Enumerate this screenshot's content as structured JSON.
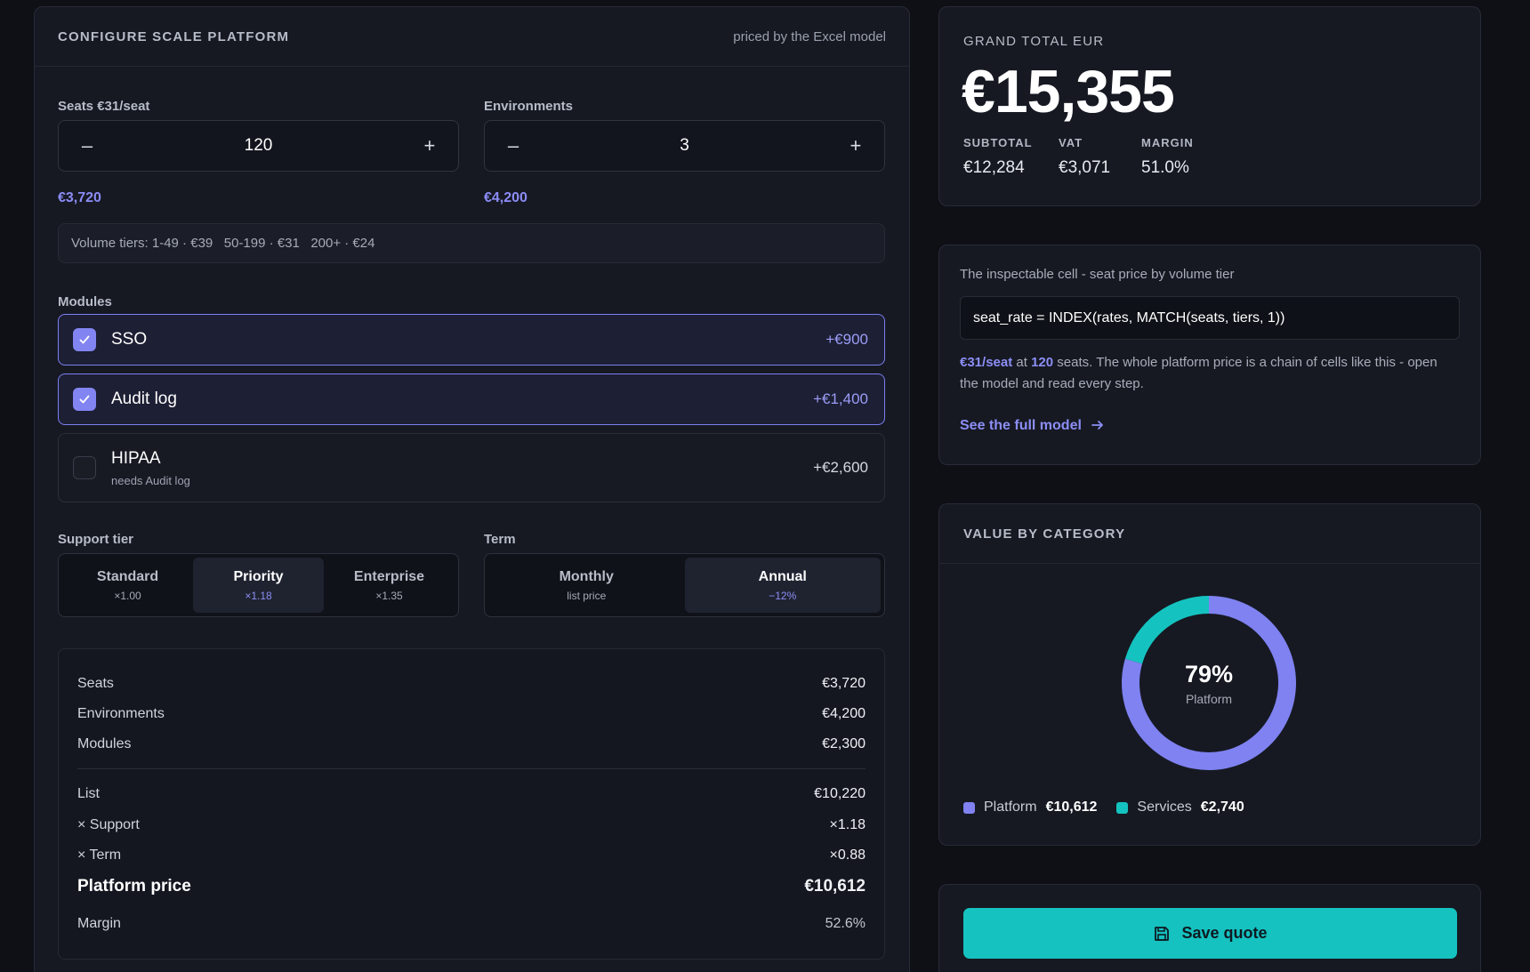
{
  "configure": {
    "title": "CONFIGURE SCALE PLATFORM",
    "note": "priced by the Excel model",
    "seats": {
      "label": "Seats €31/seat",
      "value": "120",
      "minus": "–",
      "plus": "+",
      "total": "€3,720"
    },
    "environments": {
      "label": "Environments",
      "value": "3",
      "minus": "–",
      "plus": "+",
      "total": "€4,200"
    },
    "tiers_text": "Volume tiers: 1-49 · €39   50-199 · €31   200+ · €24",
    "modules_label": "Modules",
    "modules": [
      {
        "name": "SSO",
        "sub": "",
        "price": "+€900",
        "checked": true
      },
      {
        "name": "Audit log",
        "sub": "",
        "price": "+€1,400",
        "checked": true
      },
      {
        "name": "HIPAA",
        "sub": "needs Audit log",
        "price": "+€2,600",
        "checked": false
      }
    ],
    "support": {
      "label": "Support tier",
      "options": [
        {
          "name": "Standard",
          "sub": "×1.00",
          "selected": false
        },
        {
          "name": "Priority",
          "sub": "×1.18",
          "selected": true
        },
        {
          "name": "Enterprise",
          "sub": "×1.35",
          "selected": false
        }
      ]
    },
    "term": {
      "label": "Term",
      "options": [
        {
          "name": "Monthly",
          "sub": "list price",
          "selected": false
        },
        {
          "name": "Annual",
          "sub": "−12%",
          "selected": true
        }
      ]
    },
    "breakdown": {
      "seats": {
        "k": "Seats",
        "v": "€3,720"
      },
      "environments": {
        "k": "Environments",
        "v": "€4,200"
      },
      "modules": {
        "k": "Modules",
        "v": "€2,300"
      },
      "list": {
        "k": "List",
        "v": "€10,220"
      },
      "support": {
        "k": "× Support",
        "v": "×1.18"
      },
      "term": {
        "k": "× Term",
        "v": "×0.88"
      },
      "platform": {
        "k": "Platform price",
        "v": "€10,612"
      },
      "margin": {
        "k": "Margin",
        "v": "52.6%"
      }
    }
  },
  "grand_total": {
    "label": "GRAND TOTAL EUR",
    "value": "€15,355",
    "subtotal": {
      "k": "SUBTOTAL",
      "v": "€12,284"
    },
    "vat": {
      "k": "VAT",
      "v": "€3,071"
    },
    "margin": {
      "k": "MARGIN",
      "v": "51.0%"
    }
  },
  "inspect": {
    "title": "The inspectable cell - seat price by volume tier",
    "formula": "seat_rate = INDEX(rates, MATCH(seats, tiers, 1))",
    "desc_rate": "€31/seat",
    "desc_at": " at ",
    "desc_seats": "120",
    "desc_rest": " seats. The whole platform price is a chain of cells like this - open the model and read every step.",
    "link": "See the full model"
  },
  "value_by_category": {
    "title": "VALUE BY CATEGORY",
    "center_pct": "79%",
    "center_label": "Platform",
    "colors": {
      "platform": "#7f82f0",
      "services": "#14c3bf"
    }
  },
  "chart_data": {
    "type": "pie",
    "title": "VALUE BY CATEGORY",
    "categories": [
      "Platform",
      "Services"
    ],
    "values": [
      10612,
      2740
    ],
    "display_values": [
      "€10,612",
      "€2,740"
    ],
    "legend": "bottom-left"
  },
  "save": {
    "label": "Save quote"
  }
}
